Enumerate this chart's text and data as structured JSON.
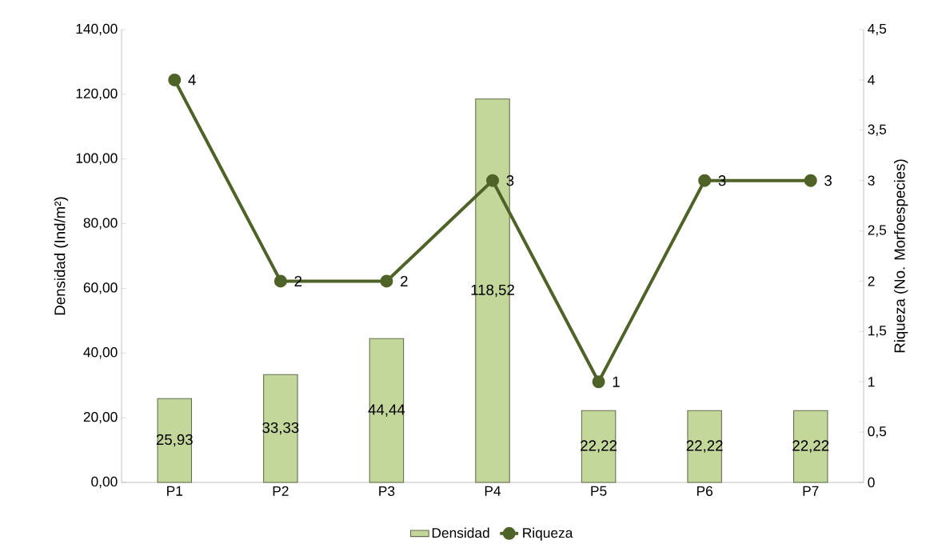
{
  "chart_data": {
    "type": "bar",
    "categories": [
      "P1",
      "P2",
      "P3",
      "P4",
      "P5",
      "P6",
      "P7"
    ],
    "ylabel": "Densidad (Ind/m²)",
    "y2label": "Riqueza (No. Morfoespecies)",
    "ylim": [
      0,
      140
    ],
    "yticks": [
      {
        "value": 0,
        "label": "0,00"
      },
      {
        "value": 20,
        "label": "20,00"
      },
      {
        "value": 40,
        "label": "40,00"
      },
      {
        "value": 60,
        "label": "60,00"
      },
      {
        "value": 80,
        "label": "80,00"
      },
      {
        "value": 100,
        "label": "100,00"
      },
      {
        "value": 120,
        "label": "120,00"
      },
      {
        "value": 140,
        "label": "140,00"
      }
    ],
    "y2lim": [
      0,
      4.5
    ],
    "y2ticks": [
      0,
      {
        "value": 0.5,
        "label": "0,5"
      },
      1,
      {
        "value": 1.5,
        "label": "1,5"
      },
      2,
      {
        "value": 2.5,
        "label": "2,5"
      },
      3,
      {
        "value": 3.5,
        "label": "3,5"
      },
      4,
      {
        "value": 4.5,
        "label": "4,5"
      }
    ],
    "legend": "bottom",
    "grid": false,
    "series": [
      {
        "name": "Densidad",
        "color": "#c4d79b",
        "values": [
          25.93,
          33.33,
          44.44,
          118.52,
          22.22,
          22.22,
          22.22
        ],
        "value_labels": [
          "25,93",
          "33,33",
          "44,44",
          "118,52",
          "22,22",
          "22,22",
          "22,22"
        ]
      },
      {
        "name": "Riqueza",
        "type": "line",
        "axis": "y2",
        "color": "#4f6228",
        "marker": "circle",
        "line_style": "solid",
        "values": [
          4,
          2,
          2,
          3,
          1,
          3,
          3
        ],
        "value_labels": [
          "4",
          "2",
          "2",
          "3",
          "1",
          "3",
          "3"
        ]
      }
    ]
  }
}
